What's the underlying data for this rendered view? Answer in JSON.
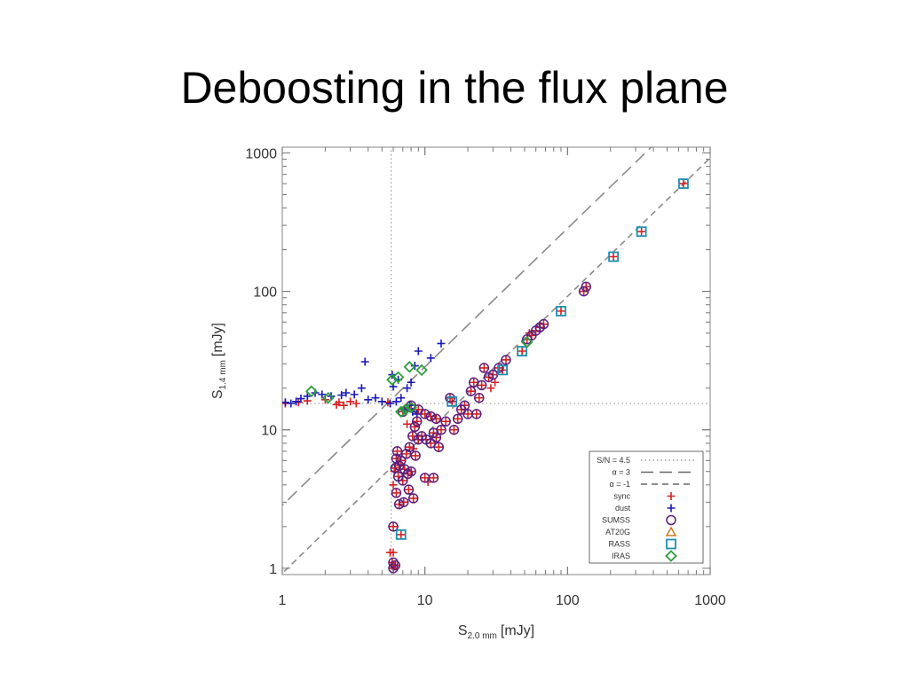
{
  "slide": {
    "title": "Deboosting in the flux plane"
  },
  "chart_data": {
    "type": "scatter",
    "title": "",
    "xlabel": "S",
    "xlabel_sub": "2.0 mm",
    "xlabel_unit": "[mJy]",
    "ylabel": "S",
    "ylabel_sub": "1.4 mm",
    "ylabel_unit": "[mJy]",
    "xscale": "log",
    "yscale": "log",
    "xlim": [
      1,
      1000
    ],
    "ylim": [
      0.9,
      1100
    ],
    "xticks": [
      1,
      10,
      100,
      1000
    ],
    "xtick_labels": [
      "1",
      "10",
      "100",
      "1000"
    ],
    "yticks": [
      1,
      10,
      100,
      1000
    ],
    "ytick_labels": [
      "1",
      "10",
      "100",
      "1000"
    ],
    "grid": false,
    "legend_position": "bottom-right",
    "reference_lines": [
      {
        "label": "S/N = 4.5",
        "style": "dotted",
        "kind": "vertical",
        "x": 5.8
      },
      {
        "label": "S/N = 4.5",
        "style": "dotted",
        "kind": "horizontal",
        "y": 15.5
      },
      {
        "label": "α = 3",
        "style": "long-dash",
        "kind": "powerlaw",
        "amplitude": 2.85,
        "slope": 1
      },
      {
        "label": "α = -1",
        "style": "short-dash",
        "kind": "powerlaw",
        "amplitude": 0.92,
        "slope": 1
      }
    ],
    "colors": {
      "sync": "#d62020",
      "dust": "#1818b8",
      "SUMSS": "#5a1f7e",
      "AT20G": "#c87b1e",
      "RASS": "#1f8fb0",
      "IRAS": "#2f9e3e",
      "reference_line": "#8a8a8a"
    },
    "legend": [
      {
        "label": "S/N = 4.5",
        "kind": "line",
        "style": "dotted"
      },
      {
        "label": "α = 3",
        "kind": "line",
        "style": "long-dash"
      },
      {
        "label": "α = -1",
        "kind": "line",
        "style": "short-dash"
      },
      {
        "label": "sync",
        "kind": "marker",
        "marker": "plus",
        "color_key": "sync"
      },
      {
        "label": "dust",
        "kind": "marker",
        "marker": "plus",
        "color_key": "dust"
      },
      {
        "label": "SUMSS",
        "kind": "marker",
        "marker": "circle",
        "color_key": "SUMSS"
      },
      {
        "label": "AT20G",
        "kind": "marker",
        "marker": "triangle",
        "color_key": "AT20G"
      },
      {
        "label": "RASS",
        "kind": "marker",
        "marker": "square",
        "color_key": "RASS"
      },
      {
        "label": "IRAS",
        "kind": "marker",
        "marker": "diamond",
        "color_key": "IRAS"
      }
    ],
    "series": [
      {
        "name": "sync",
        "marker": "plus",
        "color_key": "sync",
        "points": [
          [
            1.05,
            15.5
          ],
          [
            1.3,
            15.8
          ],
          [
            1.5,
            16.2
          ],
          [
            2.0,
            16.5
          ],
          [
            2.4,
            15.2
          ],
          [
            2.5,
            15.8
          ],
          [
            2.7,
            15.0
          ],
          [
            3.0,
            16.0
          ],
          [
            3.3,
            15.5
          ],
          [
            5.5,
            15.8
          ],
          [
            5.7,
            1.3
          ],
          [
            5.9,
            1.1
          ],
          [
            6.0,
            1.0
          ],
          [
            6.0,
            4.0
          ],
          [
            6.1,
            5.0
          ],
          [
            6.2,
            5.3
          ],
          [
            6.3,
            6.2
          ],
          [
            6.4,
            7.0
          ],
          [
            6.5,
            4.6
          ],
          [
            6.6,
            5.5
          ],
          [
            6.8,
            6.0
          ],
          [
            7.0,
            4.3
          ],
          [
            7.2,
            5.2
          ],
          [
            7.4,
            6.7
          ],
          [
            7.6,
            4.8
          ],
          [
            7.8,
            7.5
          ],
          [
            8.0,
            5.0
          ],
          [
            8.3,
            7.3
          ],
          [
            8.6,
            6.5
          ],
          [
            9.0,
            8.5
          ],
          [
            6.3,
            3.5
          ],
          [
            6.6,
            2.9
          ],
          [
            7.1,
            3.0
          ],
          [
            7.7,
            3.7
          ],
          [
            8.3,
            3.2
          ],
          [
            7.5,
            11.0
          ],
          [
            8.2,
            9.0
          ],
          [
            8.8,
            11.5
          ],
          [
            9.5,
            9.0
          ],
          [
            10.0,
            13.0
          ],
          [
            11.0,
            8.0
          ],
          [
            11.5,
            9.5
          ],
          [
            12.0,
            12.0
          ],
          [
            12.5,
            7.5
          ],
          [
            13.0,
            10.0
          ],
          [
            14.0,
            11.5
          ],
          [
            15.0,
            17.0
          ],
          [
            15.5,
            16.0
          ],
          [
            16.0,
            10.0
          ],
          [
            17.0,
            12.0
          ],
          [
            18.0,
            14.0
          ],
          [
            19.0,
            15.0
          ],
          [
            20.0,
            13.0
          ],
          [
            21.0,
            19.0
          ],
          [
            22.0,
            22.0
          ],
          [
            23.0,
            13.0
          ],
          [
            24.0,
            17.0
          ],
          [
            25.0,
            21.0
          ],
          [
            26.0,
            28.0
          ],
          [
            28.0,
            24.0
          ],
          [
            29.0,
            20.0
          ],
          [
            30.0,
            25.0
          ],
          [
            31.0,
            22.0
          ],
          [
            33.0,
            28.0
          ],
          [
            35.0,
            27.0
          ],
          [
            37.0,
            32.0
          ],
          [
            48.0,
            37.0
          ],
          [
            52.0,
            45.0
          ],
          [
            54.0,
            50.0
          ],
          [
            56.0,
            48.0
          ],
          [
            60.0,
            52.0
          ],
          [
            64.0,
            55.0
          ],
          [
            68.0,
            58.0
          ],
          [
            90.0,
            72.0
          ],
          [
            130.0,
            100.0
          ],
          [
            135.0,
            108.0
          ],
          [
            210.0,
            178.0
          ],
          [
            330.0,
            270.0
          ],
          [
            650.0,
            600.0
          ],
          [
            7.0,
            13.5
          ],
          [
            8.0,
            15.0
          ],
          [
            9.0,
            14.0
          ],
          [
            10.0,
            4.5
          ],
          [
            10.5,
            4.2
          ],
          [
            11.5,
            4.5
          ],
          [
            10.2,
            8.5
          ],
          [
            6.0,
            2.0
          ],
          [
            6.8,
            1.75
          ],
          [
            6.0,
            1.3
          ],
          [
            6.2,
            1.05
          ],
          [
            11.0,
            12.5
          ],
          [
            12.0,
            8.8
          ],
          [
            8.5,
            10.5
          ]
        ]
      },
      {
        "name": "dust",
        "marker": "plus",
        "color_key": "dust",
        "points": [
          [
            1.05,
            15.8
          ],
          [
            1.15,
            15.5
          ],
          [
            1.25,
            16.0
          ],
          [
            1.35,
            16.8
          ],
          [
            1.5,
            17.5
          ],
          [
            1.7,
            18.5
          ],
          [
            1.9,
            18.0
          ],
          [
            2.2,
            17.5
          ],
          [
            2.6,
            17.8
          ],
          [
            2.8,
            18.5
          ],
          [
            3.2,
            18.0
          ],
          [
            3.6,
            20.0
          ],
          [
            4.0,
            16.5
          ],
          [
            4.5,
            17.0
          ],
          [
            5.0,
            16.0
          ],
          [
            3.8,
            31.0
          ],
          [
            5.9,
            25.0
          ],
          [
            6.5,
            23.0
          ],
          [
            6.0,
            20.5
          ],
          [
            6.8,
            17.0
          ],
          [
            7.2,
            14.0
          ],
          [
            7.8,
            15.0
          ],
          [
            8.0,
            22.0
          ],
          [
            8.5,
            29.0
          ],
          [
            9.0,
            37.0
          ],
          [
            11.0,
            33.0
          ],
          [
            13.0,
            42.0
          ],
          [
            7.5,
            20.0
          ],
          [
            6.3,
            16.0
          ],
          [
            5.7,
            15.5
          ],
          [
            8.2,
            13.5
          ],
          [
            8.8,
            13.0
          ]
        ]
      },
      {
        "name": "SUMSS",
        "marker": "circle",
        "color_key": "SUMSS",
        "points": [
          [
            6.0,
            1.1
          ],
          [
            6.0,
            1.0
          ],
          [
            6.2,
            5.3
          ],
          [
            6.5,
            4.6
          ],
          [
            6.8,
            6.0
          ],
          [
            7.0,
            4.3
          ],
          [
            7.4,
            6.7
          ],
          [
            7.6,
            4.8
          ],
          [
            7.8,
            7.5
          ],
          [
            8.0,
            5.0
          ],
          [
            8.6,
            6.5
          ],
          [
            9.0,
            8.5
          ],
          [
            6.3,
            3.5
          ],
          [
            6.6,
            2.9
          ],
          [
            7.1,
            3.0
          ],
          [
            7.7,
            3.7
          ],
          [
            8.3,
            3.2
          ],
          [
            8.2,
            9.0
          ],
          [
            8.8,
            11.5
          ],
          [
            9.5,
            9.0
          ],
          [
            10.0,
            13.0
          ],
          [
            11.0,
            8.0
          ],
          [
            11.5,
            9.5
          ],
          [
            12.0,
            12.0
          ],
          [
            12.5,
            7.5
          ],
          [
            13.0,
            10.0
          ],
          [
            14.0,
            11.5
          ],
          [
            15.0,
            17.0
          ],
          [
            16.0,
            10.0
          ],
          [
            17.0,
            12.0
          ],
          [
            18.0,
            14.0
          ],
          [
            19.0,
            15.0
          ],
          [
            20.0,
            13.0
          ],
          [
            21.0,
            19.0
          ],
          [
            22.0,
            22.0
          ],
          [
            23.0,
            13.0
          ],
          [
            24.0,
            17.0
          ],
          [
            25.0,
            21.0
          ],
          [
            26.0,
            28.0
          ],
          [
            28.0,
            24.0
          ],
          [
            30.0,
            25.0
          ],
          [
            33.0,
            28.0
          ],
          [
            37.0,
            32.0
          ],
          [
            52.0,
            45.0
          ],
          [
            56.0,
            48.0
          ],
          [
            60.0,
            52.0
          ],
          [
            64.0,
            55.0
          ],
          [
            68.0,
            58.0
          ],
          [
            130.0,
            100.0
          ],
          [
            135.0,
            108.0
          ],
          [
            10.0,
            4.5
          ],
          [
            11.5,
            4.5
          ],
          [
            10.2,
            8.5
          ],
          [
            6.0,
            2.0
          ],
          [
            6.2,
            1.05
          ],
          [
            11.0,
            12.5
          ],
          [
            12.0,
            8.8
          ],
          [
            8.5,
            10.5
          ],
          [
            8.0,
            15.0
          ],
          [
            7.0,
            13.5
          ],
          [
            9.0,
            14.0
          ],
          [
            7.2,
            5.2
          ],
          [
            6.6,
            5.5
          ],
          [
            6.4,
            7.0
          ],
          [
            6.3,
            6.2
          ]
        ]
      },
      {
        "name": "RASS",
        "marker": "square",
        "color_key": "RASS",
        "points": [
          [
            6.8,
            1.75
          ],
          [
            15.5,
            16.0
          ],
          [
            35.0,
            27.0
          ],
          [
            48.0,
            37.0
          ],
          [
            90.0,
            72.0
          ],
          [
            210.0,
            178.0
          ],
          [
            330.0,
            270.0
          ],
          [
            650.0,
            600.0
          ]
        ]
      },
      {
        "name": "IRAS",
        "marker": "diamond",
        "color_key": "IRAS",
        "points": [
          [
            1.6,
            19.0
          ],
          [
            2.1,
            17.0
          ],
          [
            5.9,
            23.0
          ],
          [
            6.5,
            24.0
          ],
          [
            7.8,
            28.5
          ],
          [
            9.5,
            27.0
          ],
          [
            6.8,
            13.5
          ],
          [
            7.3,
            14.0
          ],
          [
            8.0,
            14.5
          ],
          [
            52.0,
            43.0
          ]
        ]
      }
    ]
  }
}
